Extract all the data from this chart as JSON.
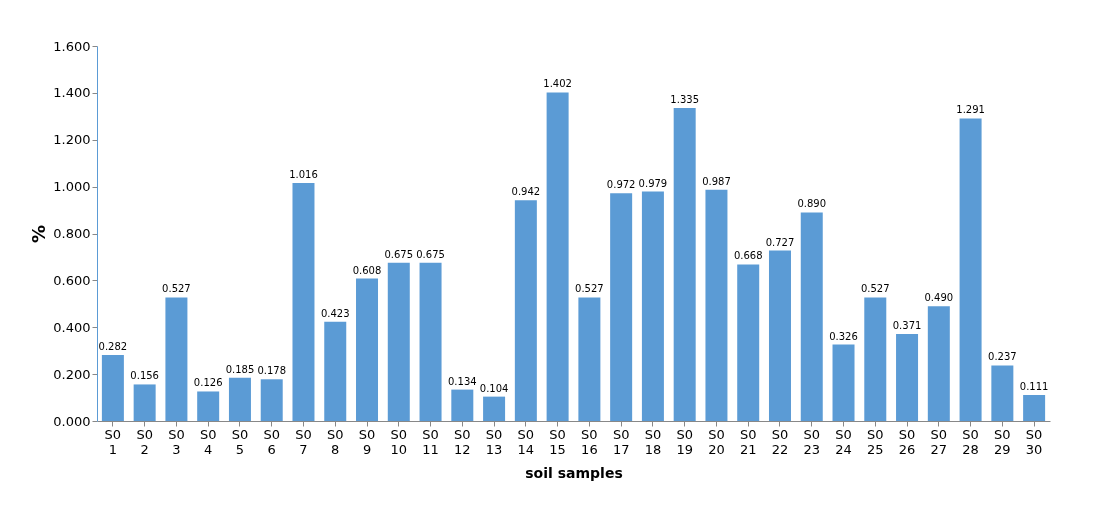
{
  "chart_data": {
    "type": "bar",
    "xlabel": "soil samples",
    "ylabel": "%",
    "categories": [
      "S0 1",
      "S0 2",
      "S0 3",
      "S0 4",
      "S0 5",
      "S0 6",
      "S0 7",
      "S0 8",
      "S0 9",
      "S0 10",
      "S0 11",
      "S0 12",
      "S0 13",
      "S0 14",
      "S0 15",
      "S0 16",
      "S0 17",
      "S0 18",
      "S0 19",
      "S0 20",
      "S0 21",
      "S0 22",
      "S0 23",
      "S0 24",
      "S0 25",
      "S0 26",
      "S0 27",
      "S0 28",
      "S0 29",
      "S0 30"
    ],
    "values": [
      0.282,
      0.156,
      0.527,
      0.126,
      0.185,
      0.178,
      1.016,
      0.423,
      0.608,
      0.675,
      0.675,
      0.134,
      0.104,
      0.942,
      1.402,
      0.527,
      0.972,
      0.979,
      1.335,
      0.987,
      0.668,
      0.727,
      0.89,
      0.326,
      0.527,
      0.371,
      0.49,
      1.291,
      0.237,
      0.111
    ],
    "value_labels": [
      "0.282",
      "0.156",
      "0.527",
      "0.126",
      "0.185",
      "0.178",
      "1.016",
      "0.423",
      "0.608",
      "0.675",
      "0.675",
      "0.134",
      "0.104",
      "0.942",
      "1.402",
      "0.527",
      "0.972",
      "0.979",
      "1.335",
      "0.987",
      "0.668",
      "0.727",
      "0.890",
      "0.326",
      "0.527",
      "0.371",
      "0.490",
      "1.291",
      "0.237",
      "0.111"
    ],
    "color": "#5b9bd5",
    "ylim": [
      0,
      1.6
    ],
    "yticks": [
      {
        "value": 0,
        "label": "0.000"
      },
      {
        "value": 0.2,
        "label": "0.200"
      },
      {
        "value": 0.4,
        "label": "0.400"
      },
      {
        "value": 0.6,
        "label": "0.600"
      },
      {
        "value": 0.8,
        "label": "0.800"
      },
      {
        "value": 1.0,
        "label": "1.000"
      },
      {
        "value": 1.2,
        "label": "1.200"
      },
      {
        "value": 1.4,
        "label": "1.400"
      },
      {
        "value": 1.6,
        "label": "1.600"
      }
    ],
    "grid": false
  }
}
